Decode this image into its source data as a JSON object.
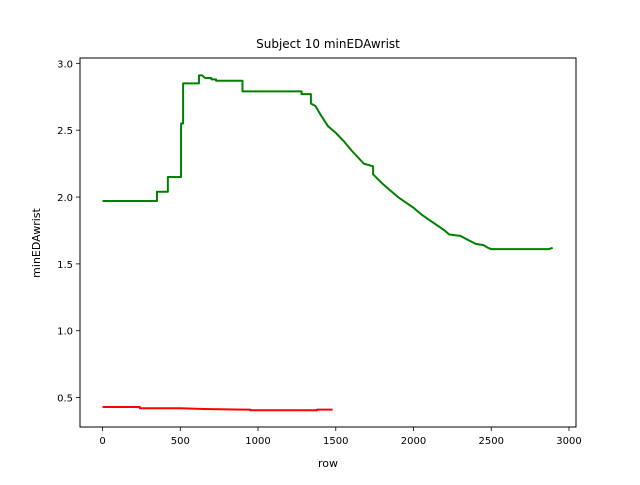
{
  "chart_data": {
    "type": "line",
    "title": "Subject 10 minEDAwrist",
    "xlabel": "row",
    "ylabel": "minEDAwrist",
    "xlim": [
      -145,
      3045
    ],
    "ylim": [
      0.28,
      3.04
    ],
    "xticks": [
      0,
      500,
      1000,
      1500,
      2000,
      2500,
      3000
    ],
    "xtick_labels": [
      "0",
      "500",
      "1000",
      "1500",
      "2000",
      "2500",
      "3000"
    ],
    "yticks": [
      0.5,
      1.0,
      1.5,
      2.0,
      2.5,
      3.0
    ],
    "ytick_labels": [
      "0.5",
      "1.0",
      "1.5",
      "2.0",
      "2.5",
      "3.0"
    ],
    "grid": false,
    "series": [
      {
        "name": "series-green",
        "color": "#008000",
        "x": [
          0,
          350,
          350,
          420,
          420,
          505,
          505,
          518,
          518,
          535,
          535,
          620,
          620,
          640,
          660,
          660,
          700,
          700,
          730,
          730,
          900,
          900,
          1280,
          1280,
          1340,
          1340,
          1370,
          1400,
          1450,
          1500,
          1550,
          1600,
          1680,
          1740,
          1740,
          1800,
          1850,
          1900,
          1950,
          2000,
          2050,
          2100,
          2150,
          2200,
          2230,
          2300,
          2350,
          2400,
          2450,
          2480,
          2500,
          2600,
          2700,
          2800,
          2870,
          2895
        ],
        "y": [
          1.97,
          1.97,
          2.04,
          2.04,
          2.15,
          2.15,
          2.55,
          2.55,
          2.85,
          2.85,
          2.85,
          2.85,
          2.91,
          2.91,
          2.89,
          2.89,
          2.89,
          2.88,
          2.88,
          2.87,
          2.87,
          2.79,
          2.79,
          2.77,
          2.77,
          2.7,
          2.68,
          2.62,
          2.53,
          2.48,
          2.42,
          2.35,
          2.25,
          2.23,
          2.17,
          2.1,
          2.05,
          2.0,
          1.96,
          1.92,
          1.87,
          1.83,
          1.79,
          1.75,
          1.72,
          1.71,
          1.68,
          1.65,
          1.64,
          1.62,
          1.61,
          1.61,
          1.61,
          1.61,
          1.61,
          1.62
        ]
      },
      {
        "name": "series-red",
        "color": "#ff0000",
        "x": [
          0,
          240,
          240,
          500,
          650,
          650,
          900,
          950,
          950,
          1200,
          1380,
          1380,
          1480
        ],
        "y": [
          0.43,
          0.43,
          0.42,
          0.42,
          0.415,
          0.415,
          0.41,
          0.41,
          0.405,
          0.405,
          0.405,
          0.41,
          0.41
        ]
      }
    ]
  }
}
